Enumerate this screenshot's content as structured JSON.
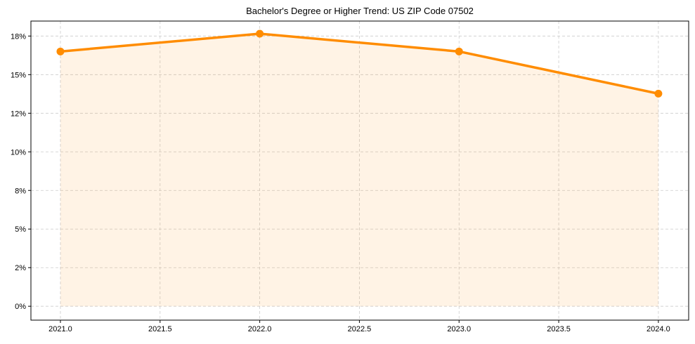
{
  "chart_data": {
    "type": "line",
    "title": "Bachelor's Degree or Higher Trend: US ZIP Code 07502",
    "xlabel": "",
    "ylabel": "",
    "x": [
      2021,
      2022,
      2023,
      2024
    ],
    "series": [
      {
        "name": "Bachelor's Degree or Higher",
        "values": [
          16.5,
          17.65,
          16.5,
          13.77
        ],
        "color": "#ff8c00",
        "fill": true
      }
    ],
    "xlim": [
      2020.852,
      2024.152
    ],
    "ylim": [
      -0.9,
      18.47
    ],
    "xticks": [
      2021.0,
      2021.5,
      2022.0,
      2022.5,
      2023.0,
      2023.5,
      2024.0
    ],
    "xtick_labels": [
      "2021.0",
      "2021.5",
      "2022.0",
      "2022.5",
      "2023.0",
      "2023.5",
      "2024.0"
    ],
    "yticks": [
      0,
      2.5,
      5,
      7.5,
      10,
      12.5,
      15,
      17.5
    ],
    "ytick_labels": [
      "0%",
      "2%",
      "5%",
      "8%",
      "10%",
      "12%",
      "15%",
      "18%"
    ],
    "grid": true,
    "legend": "none"
  }
}
